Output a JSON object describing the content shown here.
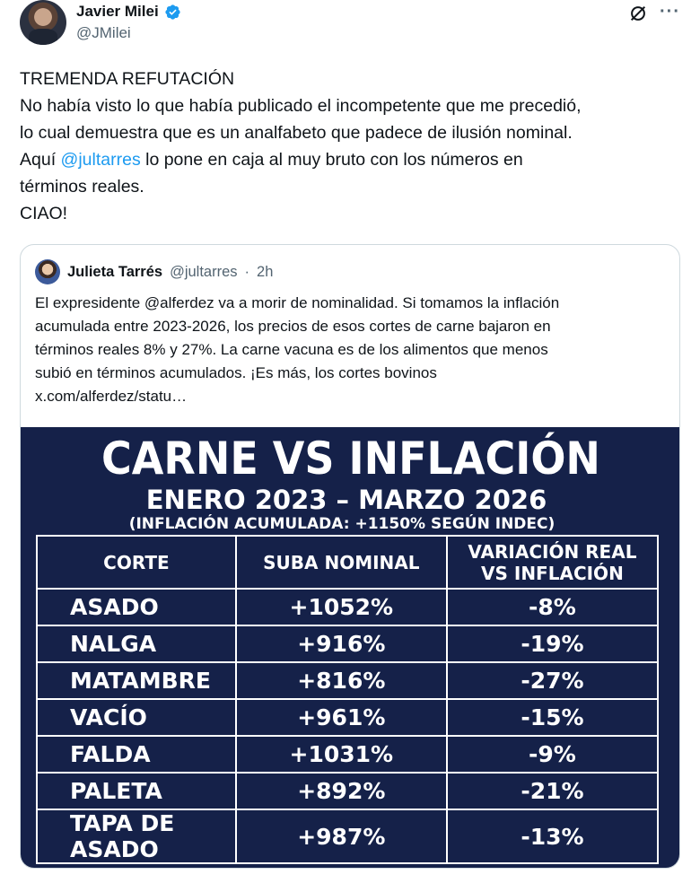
{
  "author": {
    "name": "Javier Milei",
    "handle": "@JMilei",
    "verified_icon": "verified-badge-icon",
    "colors": {
      "verified": "#1d9bf0"
    }
  },
  "actions": {
    "grok_icon": "grok-icon",
    "more": "···"
  },
  "tweet": {
    "lines": [
      "TREMENDA REFUTACIÓN",
      "No había visto lo que había publicado el incompetente que me precedió,",
      "lo cual demuestra que es un analfabeto que padece de ilusión nominal.",
      {
        "pre": "Aquí ",
        "mention": "@jultarres",
        "post": " lo pone en caja al muy bruto con los números en"
      },
      "términos reales.",
      "CIAO!"
    ]
  },
  "quote": {
    "name": "Julieta Tarrés",
    "handle": "@jultarres",
    "separator": "·",
    "time": "2h",
    "lines": [
      "El expresidente @alferdez va a morir de nominalidad. Si tomamos la inflación",
      "acumulada entre 2023-2026, los precios de esos cortes de carne bajaron en",
      "términos reales 8% y 27%. La carne vacuna es de los alimentos que menos",
      "subió en términos acumulados. ¡Es más, los cortes bovinos",
      "x.com/alferdez/statu…"
    ],
    "image": {
      "background": "#152149",
      "title": "CARNE VS INFLACIÓN",
      "subtitle": "ENERO 2023 – MARZO 2026",
      "note": "(INFLACIÓN ACUMULADA: +1150% SEGÚN INDEC)",
      "table": {
        "headers": [
          "CORTE",
          "SUBA NOMINAL",
          "VARIACIÓN REAL VS INFLACIÓN"
        ],
        "rows": [
          [
            "ASADO",
            "+1052%",
            "-8%"
          ],
          [
            "NALGA",
            "+916%",
            "-19%"
          ],
          [
            "MATAMBRE",
            "+816%",
            "-27%"
          ],
          [
            "VACÍO",
            "+961%",
            "-15%"
          ],
          [
            "FALDA",
            "+1031%",
            "-9%"
          ],
          [
            "PALETA",
            "+892%",
            "-21%"
          ],
          [
            "TAPA DE ASADO",
            "+987%",
            "-13%"
          ]
        ]
      }
    }
  }
}
